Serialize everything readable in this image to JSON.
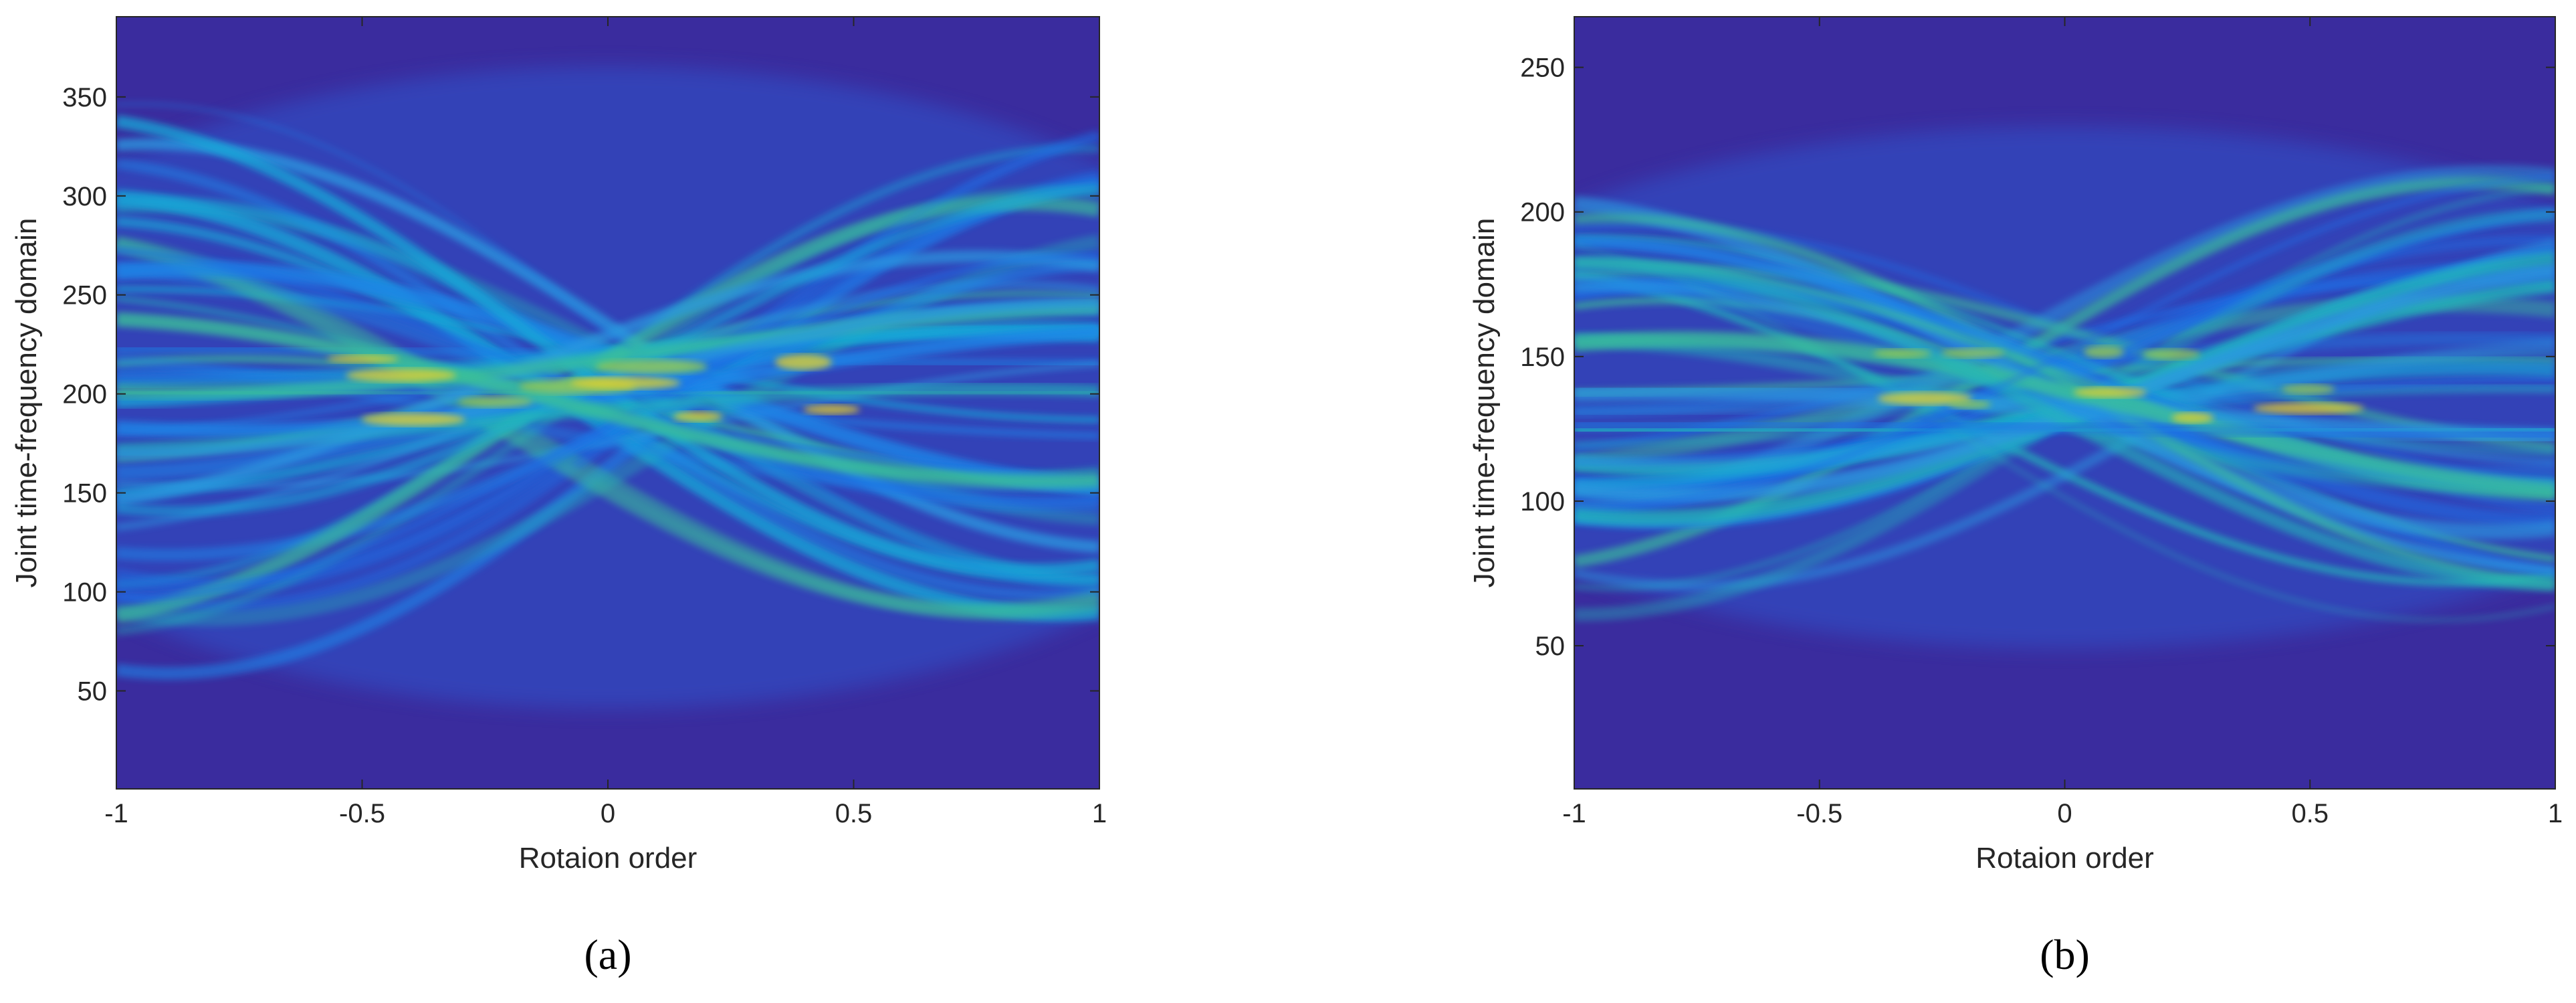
{
  "chart_data": [
    {
      "type": "heatmap",
      "xlabel": "Rotaion order",
      "ylabel": "Joint time-frequency domain",
      "caption": "(a)",
      "xlim": [
        -1,
        1
      ],
      "xticks": [
        -1,
        -0.5,
        0,
        0.5,
        1
      ],
      "ylim": [
        0.5,
        390.5
      ],
      "yticks": [
        50,
        100,
        150,
        200,
        250,
        300,
        350
      ]
    },
    {
      "type": "heatmap",
      "xlabel": "Rotaion order",
      "ylabel": "Joint time-frequency domain",
      "caption": "(b)",
      "xlim": [
        -1,
        1
      ],
      "xticks": [
        -1,
        -0.5,
        0,
        0.5,
        1
      ],
      "ylim": [
        0.5,
        267.5
      ],
      "yticks": [
        50,
        100,
        150,
        200,
        250
      ]
    }
  ]
}
